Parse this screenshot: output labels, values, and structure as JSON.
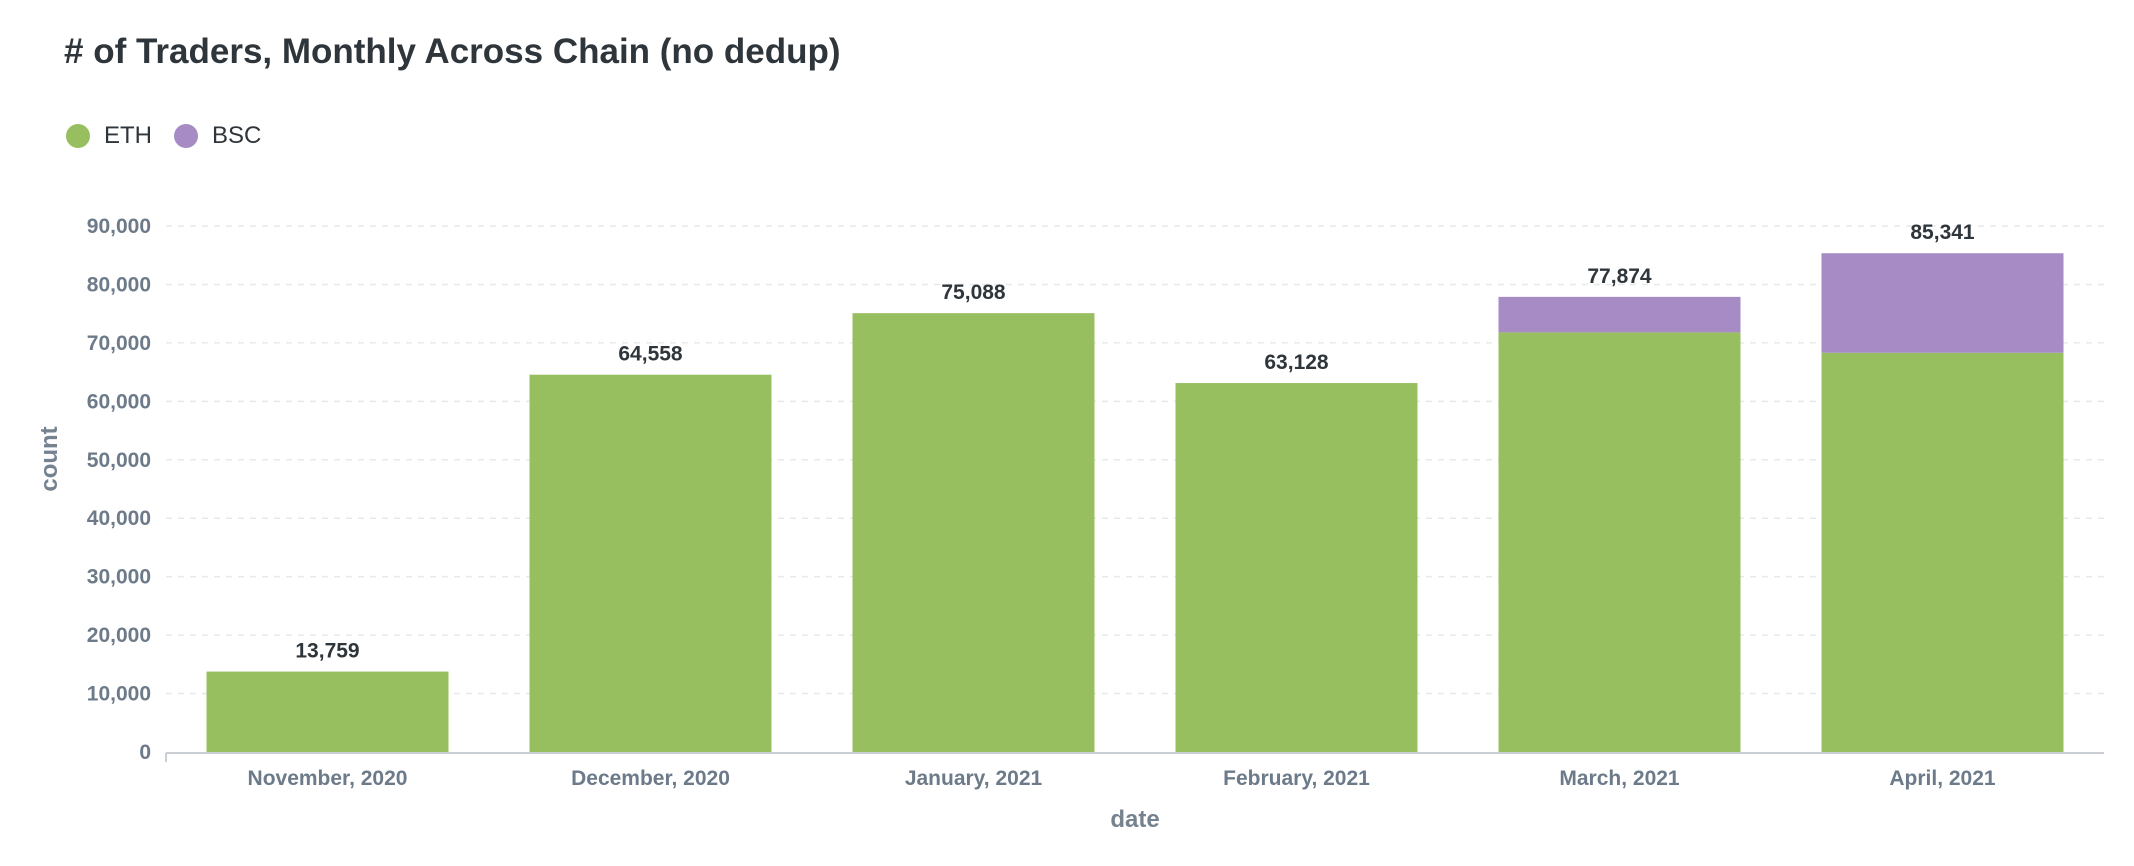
{
  "chart_data": {
    "type": "bar",
    "stacked": true,
    "title": "# of Traders, Monthly Across Chain (no dedup)",
    "xlabel": "date",
    "ylabel": "count",
    "categories": [
      "November, 2020",
      "December, 2020",
      "January, 2021",
      "February, 2021",
      "March, 2021",
      "April, 2021"
    ],
    "series": [
      {
        "name": "ETH",
        "color": "#98bf5f",
        "values": [
          13759,
          64558,
          75088,
          63128,
          71800,
          68300
        ]
      },
      {
        "name": "BSC",
        "color": "#a68bc5",
        "values": [
          0,
          0,
          0,
          0,
          6074,
          17041
        ]
      }
    ],
    "totals": [
      "13,759",
      "64,558",
      "75,088",
      "63,128",
      "77,874",
      "85,341"
    ],
    "ylim": [
      0,
      90000
    ],
    "yticks": [
      0,
      10000,
      20000,
      30000,
      40000,
      50000,
      60000,
      70000,
      80000,
      90000
    ],
    "ytick_labels": [
      "0",
      "10,000",
      "20,000",
      "30,000",
      "40,000",
      "50,000",
      "60,000",
      "70,000",
      "80,000",
      "90,000"
    ],
    "grid": true,
    "legend_position": "top-left"
  }
}
